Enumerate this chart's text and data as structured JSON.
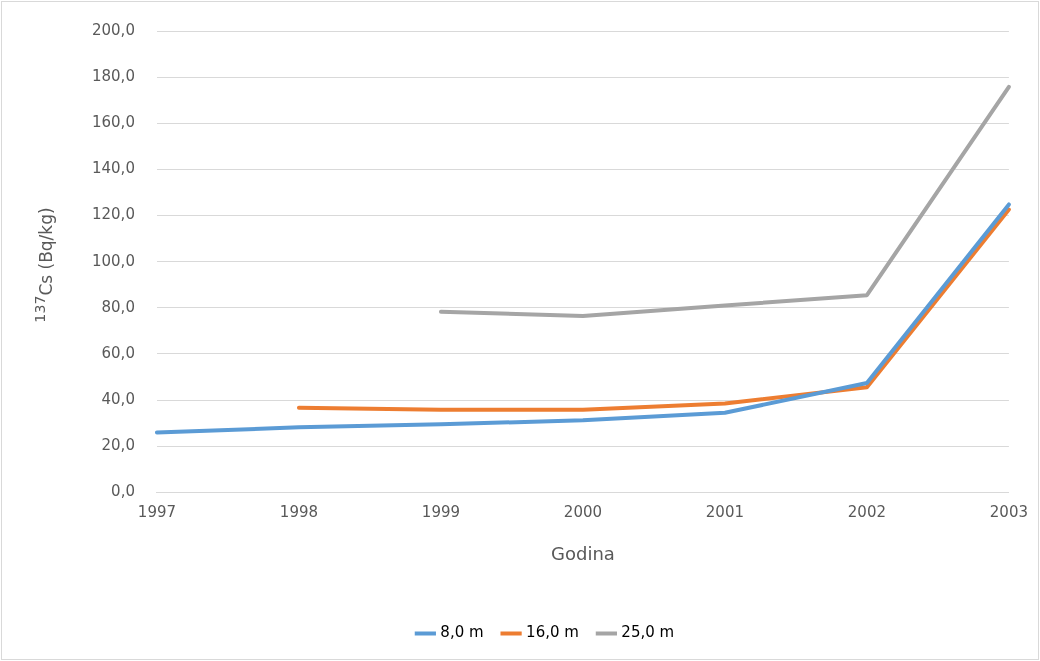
{
  "chart_data": {
    "type": "line",
    "xlabel": "Godina",
    "ylabel": "$^{137}$Cs (Bq/kg)",
    "categories": [
      "1997",
      "1998",
      "1999",
      "2000",
      "2001",
      "2002",
      "2003"
    ],
    "series": [
      {
        "name": "8,0 m",
        "color": "#5b9bd5",
        "values": [
          26,
          28.2,
          29.5,
          31.3,
          34.5,
          47.4,
          124.8
        ]
      },
      {
        "name": "16,0 m",
        "color": "#ed7d31",
        "values": [
          null,
          36.7,
          35.8,
          35.8,
          38.5,
          45.6,
          122.6
        ]
      },
      {
        "name": "25,0 m",
        "color": "#a5a5a5",
        "values": [
          null,
          null,
          78.3,
          76.5,
          81,
          85.5,
          175.8
        ]
      }
    ],
    "ylim": [
      0,
      200
    ],
    "yticks": [
      {
        "value": 0,
        "label": "0,0"
      },
      {
        "value": 20,
        "label": "20,0"
      },
      {
        "value": 40,
        "label": "40,0"
      },
      {
        "value": 60,
        "label": "60,0"
      },
      {
        "value": 80,
        "label": "80,0"
      },
      {
        "value": 100,
        "label": "100,0"
      },
      {
        "value": 120,
        "label": "120,0"
      },
      {
        "value": 140,
        "label": "140,0"
      },
      {
        "value": 160,
        "label": "160,0"
      },
      {
        "value": 180,
        "label": "180,0"
      },
      {
        "value": 200,
        "label": "200,0"
      }
    ],
    "grid": "y",
    "legend": "bottom",
    "marker": "none",
    "line_style": "solid"
  }
}
